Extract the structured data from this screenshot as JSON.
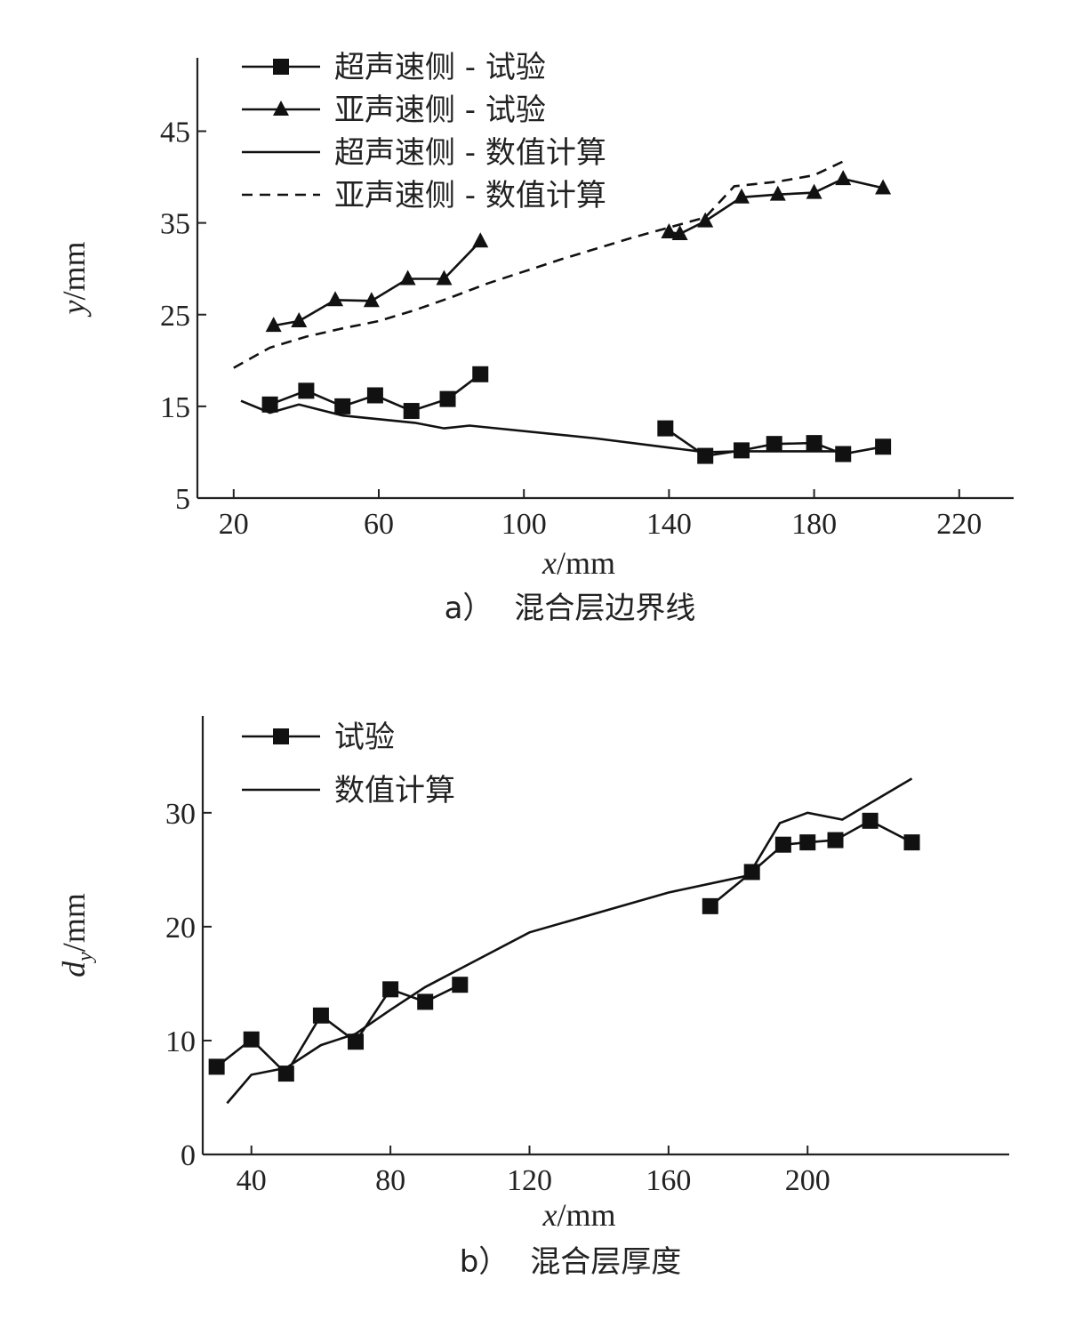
{
  "chart_data": [
    {
      "type": "line",
      "caption_index": "a）",
      "caption_text": "混合层边界线",
      "xlabel_var": "x",
      "xlabel_unit": "/mm",
      "ylabel_var": "y",
      "ylabel_unit": "/mm",
      "xlim": [
        10,
        235
      ],
      "ylim": [
        5,
        53
      ],
      "xticks": [
        20,
        60,
        100,
        140,
        180,
        220
      ],
      "yticks": [
        5,
        15,
        25,
        35,
        45
      ],
      "legend_position": "top-left",
      "series": [
        {
          "name": "超声速侧 - 试验",
          "marker": "square",
          "style": "solid",
          "segments": [
            [
              [
                30,
                15.2
              ],
              [
                40,
                16.7
              ],
              [
                50,
                15.0
              ],
              [
                59,
                16.2
              ],
              [
                69,
                14.5
              ],
              [
                79,
                15.8
              ],
              [
                88,
                18.5
              ]
            ],
            [
              [
                139,
                12.6
              ],
              [
                150,
                9.6
              ],
              [
                160,
                10.2
              ],
              [
                169,
                10.9
              ],
              [
                180,
                11.0
              ],
              [
                188,
                9.8
              ],
              [
                199,
                10.6
              ]
            ]
          ]
        },
        {
          "name": "亚声速侧 - 试验",
          "marker": "triangle",
          "style": "solid",
          "segments": [
            [
              [
                31,
                23.8
              ],
              [
                38,
                24.3
              ],
              [
                48,
                26.6
              ],
              [
                58,
                26.5
              ],
              [
                68,
                28.9
              ],
              [
                78,
                28.9
              ],
              [
                88,
                33.0
              ]
            ],
            [
              [
                140,
                34.0
              ],
              [
                143,
                33.8
              ],
              [
                150,
                35.2
              ],
              [
                160,
                37.8
              ],
              [
                170,
                38.1
              ],
              [
                180,
                38.3
              ],
              [
                188,
                39.8
              ],
              [
                199,
                38.8
              ]
            ]
          ]
        },
        {
          "name": "超声速侧 - 数值计算",
          "marker": "none",
          "style": "solid",
          "segments": [
            [
              [
                22,
                15.6
              ],
              [
                30,
                14.3
              ],
              [
                38,
                15.2
              ],
              [
                50,
                14.0
              ],
              [
                70,
                13.2
              ],
              [
                78,
                12.6
              ],
              [
                85,
                12.9
              ],
              [
                120,
                11.5
              ],
              [
                140,
                10.5
              ],
              [
                150,
                10.0
              ],
              [
                160,
                10.1
              ],
              [
                170,
                10.1
              ],
              [
                180,
                10.1
              ],
              [
                187,
                10.1
              ],
              [
                190,
                9.8
              ]
            ]
          ]
        },
        {
          "name": "亚声速侧 - 数值计算",
          "marker": "none",
          "style": "dashed",
          "segments": [
            [
              [
                20,
                19.2
              ],
              [
                30,
                21.4
              ],
              [
                40,
                22.6
              ],
              [
                50,
                23.5
              ],
              [
                60,
                24.3
              ],
              [
                70,
                25.5
              ],
              [
                80,
                26.9
              ],
              [
                90,
                28.4
              ],
              [
                100,
                29.7
              ],
              [
                110,
                31.0
              ],
              [
                120,
                32.2
              ],
              [
                130,
                33.4
              ],
              [
                140,
                34.5
              ],
              [
                150,
                35.6
              ],
              [
                158,
                39.0
              ],
              [
                170,
                39.5
              ],
              [
                180,
                40.2
              ],
              [
                188,
                41.7
              ]
            ]
          ]
        }
      ]
    },
    {
      "type": "line",
      "caption_index": "b）",
      "caption_text": "混合层厚度",
      "xlabel_var": "x",
      "xlabel_unit": "/mm",
      "ylabel_var": "d",
      "ylabel_sub": "y",
      "ylabel_unit": "/mm",
      "xlim": [
        26,
        258
      ],
      "ylim": [
        0,
        38.5
      ],
      "xticks": [
        40,
        80,
        120,
        160,
        200
      ],
      "yticks": [
        0,
        10,
        20,
        30
      ],
      "legend_position": "top-left",
      "series": [
        {
          "name": "试验",
          "marker": "square",
          "style": "solid",
          "segments": [
            [
              [
                30,
                7.7
              ],
              [
                40,
                10.1
              ],
              [
                50,
                7.1
              ],
              [
                60,
                12.2
              ],
              [
                70,
                9.9
              ],
              [
                80,
                14.5
              ],
              [
                90,
                13.4
              ],
              [
                100,
                14.9
              ]
            ],
            [
              [
                172,
                21.8
              ],
              [
                184,
                24.8
              ],
              [
                193,
                27.2
              ],
              [
                200,
                27.4
              ],
              [
                208,
                27.6
              ],
              [
                218,
                29.3
              ],
              [
                230,
                27.4
              ]
            ]
          ]
        },
        {
          "name": "数值计算",
          "marker": "none",
          "style": "solid",
          "segments": [
            [
              [
                33,
                4.5
              ],
              [
                40,
                7.0
              ],
              [
                50,
                7.6
              ],
              [
                60,
                9.6
              ],
              [
                70,
                10.6
              ],
              [
                80,
                12.7
              ],
              [
                90,
                14.7
              ],
              [
                120,
                19.5
              ],
              [
                160,
                23.0
              ],
              [
                183,
                24.5
              ],
              [
                192,
                29.1
              ],
              [
                200,
                30.0
              ],
              [
                210,
                29.4
              ],
              [
                230,
                33.0
              ]
            ]
          ]
        }
      ]
    }
  ]
}
